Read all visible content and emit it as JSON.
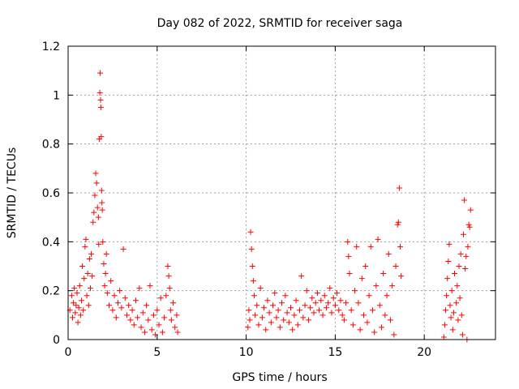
{
  "chart_data": {
    "type": "scatter",
    "title": "Day 082 of 2022, SRMTID for receiver saga",
    "xlabel": "GPS time / hours",
    "ylabel": "SRMTID / TECUs",
    "xlim": [
      0,
      24
    ],
    "ylim": [
      0,
      1.2
    ],
    "xticks": [
      0,
      5,
      10,
      15,
      20
    ],
    "yticks": [
      0,
      0.2,
      0.4,
      0.6,
      0.8,
      1.0,
      1.2
    ],
    "xtick_labels": [
      "0",
      "5",
      "10",
      "15",
      "20"
    ],
    "ytick_labels": [
      "0",
      "0.2",
      "0.4",
      "0.6",
      "0.8",
      "1",
      "1.2"
    ],
    "grid": true,
    "marker": "+",
    "color": "#ff0000",
    "series": [
      {
        "name": "saga",
        "points": [
          [
            0.1,
            0.12
          ],
          [
            0.2,
            0.18
          ],
          [
            0.25,
            0.09
          ],
          [
            0.3,
            0.15
          ],
          [
            0.35,
            0.21
          ],
          [
            0.4,
            0.11
          ],
          [
            0.45,
            0.14
          ],
          [
            0.5,
            0.19
          ],
          [
            0.55,
            0.07
          ],
          [
            0.6,
            0.13
          ],
          [
            0.65,
            0.22
          ],
          [
            0.7,
            0.1
          ],
          [
            0.75,
            0.16
          ],
          [
            0.8,
            0.3
          ],
          [
            0.85,
            0.12
          ],
          [
            0.9,
            0.25
          ],
          [
            0.95,
            0.38
          ],
          [
            1.0,
            0.41
          ],
          [
            1.05,
            0.18
          ],
          [
            1.1,
            0.27
          ],
          [
            1.15,
            0.14
          ],
          [
            1.2,
            0.33
          ],
          [
            1.25,
            0.21
          ],
          [
            1.3,
            0.35
          ],
          [
            1.35,
            0.26
          ],
          [
            1.4,
            0.48
          ],
          [
            1.45,
            0.52
          ],
          [
            1.5,
            0.59
          ],
          [
            1.55,
            0.68
          ],
          [
            1.6,
            0.64
          ],
          [
            1.65,
            0.54
          ],
          [
            1.7,
            0.5
          ],
          [
            1.72,
            0.39
          ],
          [
            1.75,
            0.82
          ],
          [
            1.78,
            1.01
          ],
          [
            1.8,
            1.09
          ],
          [
            1.82,
            0.98
          ],
          [
            1.84,
            0.95
          ],
          [
            1.86,
            0.83
          ],
          [
            1.88,
            0.61
          ],
          [
            1.9,
            0.56
          ],
          [
            1.92,
            0.53
          ],
          [
            1.95,
            0.4
          ],
          [
            2.0,
            0.31
          ],
          [
            2.05,
            0.22
          ],
          [
            2.1,
            0.27
          ],
          [
            2.15,
            0.35
          ],
          [
            2.2,
            0.19
          ],
          [
            2.3,
            0.14
          ],
          [
            2.4,
            0.24
          ],
          [
            2.5,
            0.12
          ],
          [
            2.6,
            0.18
          ],
          [
            2.7,
            0.09
          ],
          [
            2.8,
            0.15
          ],
          [
            2.9,
            0.2
          ],
          [
            3.0,
            0.13
          ],
          [
            3.1,
            0.37
          ],
          [
            3.2,
            0.17
          ],
          [
            3.3,
            0.1
          ],
          [
            3.4,
            0.14
          ],
          [
            3.5,
            0.08
          ],
          [
            3.6,
            0.12
          ],
          [
            3.7,
            0.06
          ],
          [
            3.8,
            0.16
          ],
          [
            3.9,
            0.09
          ],
          [
            4.0,
            0.21
          ],
          [
            4.1,
            0.05
          ],
          [
            4.2,
            0.11
          ],
          [
            4.3,
            0.03
          ],
          [
            4.4,
            0.14
          ],
          [
            4.5,
            0.08
          ],
          [
            4.6,
            0.22
          ],
          [
            4.7,
            0.04
          ],
          [
            4.8,
            0.1
          ],
          [
            4.9,
            0.02
          ],
          [
            5.0,
            0.12
          ],
          [
            5.1,
            0.06
          ],
          [
            5.2,
            0.17
          ],
          [
            5.3,
            0.03
          ],
          [
            5.4,
            0.09
          ],
          [
            5.5,
            0.18
          ],
          [
            5.6,
            0.3
          ],
          [
            5.65,
            0.26
          ],
          [
            5.7,
            0.21
          ],
          [
            5.75,
            0.12
          ],
          [
            5.8,
            0.08
          ],
          [
            5.9,
            0.15
          ],
          [
            6.0,
            0.05
          ],
          [
            6.1,
            0.1
          ],
          [
            6.15,
            0.03
          ],
          [
            10.1,
            0.05
          ],
          [
            10.15,
            0.12
          ],
          [
            10.2,
            0.08
          ],
          [
            10.25,
            0.44
          ],
          [
            10.3,
            0.37
          ],
          [
            10.35,
            0.3
          ],
          [
            10.4,
            0.24
          ],
          [
            10.45,
            0.18
          ],
          [
            10.5,
            0.1
          ],
          [
            10.6,
            0.14
          ],
          [
            10.7,
            0.06
          ],
          [
            10.8,
            0.21
          ],
          [
            10.9,
            0.09
          ],
          [
            11.0,
            0.13
          ],
          [
            11.1,
            0.04
          ],
          [
            11.2,
            0.16
          ],
          [
            11.3,
            0.11
          ],
          [
            11.4,
            0.07
          ],
          [
            11.5,
            0.14
          ],
          [
            11.6,
            0.19
          ],
          [
            11.7,
            0.09
          ],
          [
            11.8,
            0.12
          ],
          [
            11.9,
            0.05
          ],
          [
            12.0,
            0.15
          ],
          [
            12.1,
            0.08
          ],
          [
            12.2,
            0.18
          ],
          [
            12.3,
            0.11
          ],
          [
            12.4,
            0.07
          ],
          [
            12.5,
            0.13
          ],
          [
            12.6,
            0.04
          ],
          [
            12.7,
            0.1
          ],
          [
            12.8,
            0.16
          ],
          [
            12.9,
            0.06
          ],
          [
            13.0,
            0.12
          ],
          [
            13.1,
            0.26
          ],
          [
            13.2,
            0.09
          ],
          [
            13.3,
            0.14
          ],
          [
            13.4,
            0.2
          ],
          [
            13.5,
            0.08
          ],
          [
            13.6,
            0.13
          ],
          [
            13.7,
            0.17
          ],
          [
            13.8,
            0.11
          ],
          [
            13.9,
            0.15
          ],
          [
            14.0,
            0.19
          ],
          [
            14.1,
            0.12
          ],
          [
            14.2,
            0.16
          ],
          [
            14.3,
            0.1
          ],
          [
            14.4,
            0.18
          ],
          [
            14.5,
            0.13
          ],
          [
            14.6,
            0.15
          ],
          [
            14.7,
            0.21
          ],
          [
            14.8,
            0.11
          ],
          [
            14.9,
            0.17
          ],
          [
            15.0,
            0.14
          ],
          [
            15.1,
            0.19
          ],
          [
            15.2,
            0.12
          ],
          [
            15.3,
            0.16
          ],
          [
            15.4,
            0.1
          ],
          [
            15.5,
            0.08
          ],
          [
            15.6,
            0.15
          ],
          [
            15.7,
            0.4
          ],
          [
            15.75,
            0.34
          ],
          [
            15.8,
            0.27
          ],
          [
            15.9,
            0.12
          ],
          [
            16.0,
            0.06
          ],
          [
            16.1,
            0.2
          ],
          [
            16.2,
            0.38
          ],
          [
            16.3,
            0.15
          ],
          [
            16.4,
            0.04
          ],
          [
            16.5,
            0.25
          ],
          [
            16.6,
            0.1
          ],
          [
            16.7,
            0.3
          ],
          [
            16.8,
            0.07
          ],
          [
            16.9,
            0.18
          ],
          [
            17.0,
            0.38
          ],
          [
            17.1,
            0.12
          ],
          [
            17.2,
            0.03
          ],
          [
            17.3,
            0.22
          ],
          [
            17.4,
            0.41
          ],
          [
            17.5,
            0.14
          ],
          [
            17.6,
            0.05
          ],
          [
            17.7,
            0.27
          ],
          [
            17.8,
            0.1
          ],
          [
            17.9,
            0.18
          ],
          [
            18.0,
            0.35
          ],
          [
            18.1,
            0.08
          ],
          [
            18.2,
            0.22
          ],
          [
            18.3,
            0.02
          ],
          [
            18.4,
            0.3
          ],
          [
            18.5,
            0.47
          ],
          [
            18.55,
            0.48
          ],
          [
            18.6,
            0.62
          ],
          [
            18.65,
            0.38
          ],
          [
            18.7,
            0.26
          ],
          [
            21.1,
            0.01
          ],
          [
            21.15,
            0.06
          ],
          [
            21.2,
            0.12
          ],
          [
            21.25,
            0.18
          ],
          [
            21.3,
            0.25
          ],
          [
            21.35,
            0.32
          ],
          [
            21.4,
            0.39
          ],
          [
            21.45,
            0.14
          ],
          [
            21.5,
            0.09
          ],
          [
            21.55,
            0.2
          ],
          [
            21.6,
            0.04
          ],
          [
            21.65,
            0.11
          ],
          [
            21.7,
            0.27
          ],
          [
            21.8,
            0.15
          ],
          [
            21.85,
            0.22
          ],
          [
            21.9,
            0.08
          ],
          [
            21.95,
            0.3
          ],
          [
            22.0,
            0.17
          ],
          [
            22.05,
            0.35
          ],
          [
            22.1,
            0.1
          ],
          [
            22.15,
            0.02
          ],
          [
            22.2,
            0.43
          ],
          [
            22.25,
            0.57
          ],
          [
            22.3,
            0.29
          ],
          [
            22.35,
            0.34
          ],
          [
            22.4,
            0.0
          ],
          [
            22.45,
            0.38
          ],
          [
            22.5,
            0.47
          ],
          [
            22.55,
            0.46
          ],
          [
            22.6,
            0.53
          ]
        ]
      }
    ]
  }
}
